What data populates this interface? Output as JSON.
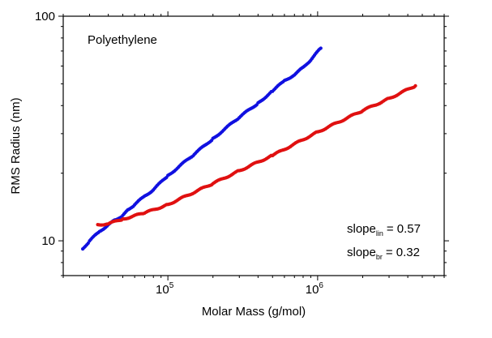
{
  "chart_data": {
    "type": "scatter",
    "title": "",
    "xlabel": "Molar Mass (g/mol)",
    "ylabel": "RMS Radius (nm)",
    "x_scale": "log",
    "y_scale": "log",
    "xlim": [
      20000,
      7000000
    ],
    "ylim": [
      7,
      100
    ],
    "grid": false,
    "x_ticks": [
      {
        "value": 100000,
        "base": "10",
        "exp": "5"
      },
      {
        "value": 1000000,
        "base": "10",
        "exp": "6"
      }
    ],
    "y_ticks": [
      {
        "value": 10,
        "label": "10"
      },
      {
        "value": 100,
        "label": "100"
      }
    ],
    "annotations": {
      "sample": "Polyethylene",
      "slope_lin": {
        "base": "slope",
        "sub": "lin",
        "value": "= 0.57"
      },
      "slope_br": {
        "base": "slope",
        "sub": "br",
        "value": "= 0.32"
      }
    },
    "series": [
      {
        "color": "#1010e0",
        "x": [
          27000,
          30000,
          35000,
          40000,
          45000,
          50000,
          55000,
          60000,
          70000,
          80000,
          100000,
          150000,
          200000,
          300000,
          400000,
          500000,
          600000,
          700000,
          800000,
          900000,
          1050000
        ],
        "y": [
          9.2,
          10.0,
          11.0,
          11.8,
          12.4,
          13.0,
          13.8,
          14.5,
          15.8,
          16.9,
          19.5,
          24.3,
          28.5,
          35.5,
          41.0,
          46.5,
          51.5,
          55.0,
          59.0,
          64.0,
          72.0
        ]
      },
      {
        "color": "#e01010",
        "x": [
          34000,
          40000,
          50000,
          70000,
          100000,
          200000,
          300000,
          500000,
          1000000,
          2000000,
          3000000,
          4500000
        ],
        "y": [
          11.8,
          11.9,
          12.5,
          13.3,
          14.5,
          18.0,
          20.5,
          24.0,
          30.5,
          38.0,
          43.0,
          49.0
        ]
      }
    ]
  }
}
